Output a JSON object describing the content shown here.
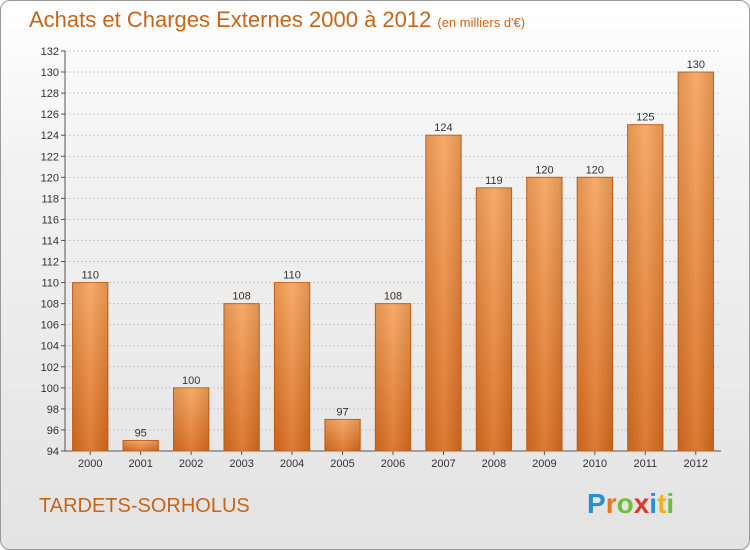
{
  "header": {
    "title": "Achats et Charges Externes 2000 à 2012",
    "unit": "(en milliers d'€)"
  },
  "footer": {
    "town": "TARDETS-SORHOLUS",
    "logo_letters": [
      "P",
      "r",
      "o",
      "x",
      "i",
      "t",
      "i"
    ],
    "logo_colors": [
      "#2a8fd0",
      "#e8741c",
      "#6cbf3a",
      "#d93a2a",
      "#2a8fd0",
      "#f0b020",
      "#6cbf3a"
    ]
  },
  "chart_data": {
    "type": "bar",
    "categories": [
      "2000",
      "2001",
      "2002",
      "2003",
      "2004",
      "2005",
      "2006",
      "2007",
      "2008",
      "2009",
      "2010",
      "2011",
      "2012"
    ],
    "values": [
      110,
      95,
      100,
      108,
      110,
      97,
      108,
      124,
      119,
      120,
      120,
      125,
      130
    ],
    "data_labels": [
      "110",
      "95",
      "100",
      "108",
      "110",
      "97",
      "108",
      "124",
      "119",
      "120",
      "120",
      "125",
      "130"
    ],
    "ylim": [
      94,
      132
    ],
    "yticks": [
      94,
      96,
      98,
      100,
      102,
      104,
      106,
      108,
      110,
      112,
      114,
      116,
      118,
      120,
      122,
      124,
      126,
      128,
      130,
      132
    ],
    "grid": true,
    "bar_color": "#e8843a",
    "title": "Achats et Charges Externes 2000 à 2012",
    "xlabel": "",
    "ylabel": ""
  }
}
